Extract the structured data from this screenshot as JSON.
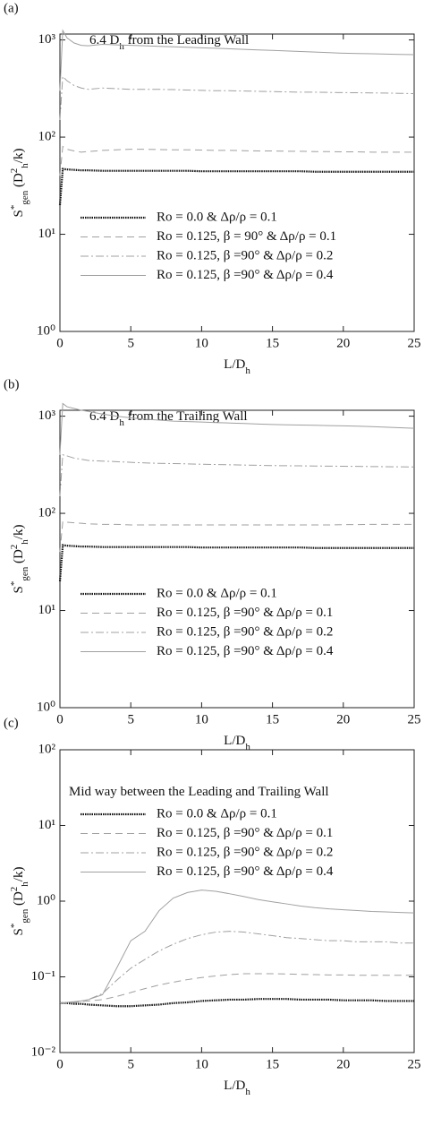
{
  "chart_data": [
    {
      "type": "line",
      "panel": "(a)",
      "log_y": true,
      "annotation": [
        {
          "t": "6.4 D"
        },
        {
          "t": "h",
          "s": "sub"
        },
        {
          "t": " from the Leading Wall"
        }
      ],
      "xlabel": [
        {
          "t": "L/D"
        },
        {
          "t": "h",
          "s": "sub"
        }
      ],
      "ylabel": [
        {
          "t": "S"
        },
        {
          "t": "*",
          "s": "sup"
        },
        {
          "t": "gen",
          "s": "sub"
        },
        {
          "t": " (D"
        },
        {
          "t": "2",
          "s": "sup"
        },
        {
          "t": "h",
          "s": "sub"
        },
        {
          "t": "/k)"
        }
      ],
      "xlim": [
        0,
        25
      ],
      "xticks": [
        0,
        5,
        10,
        15,
        20,
        25
      ],
      "ylim": [
        1,
        1150
      ],
      "yticks": [
        {
          "value": 1,
          "label": "10⁰"
        },
        {
          "value": 10,
          "label": "10¹"
        },
        {
          "value": 100,
          "label": "10²"
        },
        {
          "value": 1000,
          "label": "10³"
        }
      ],
      "legend": "middle",
      "x": [
        0,
        0.2,
        0.5,
        1,
        1.5,
        2,
        3,
        4,
        5,
        6,
        7,
        8,
        9,
        10,
        11,
        12,
        13,
        14,
        15,
        16,
        17,
        18,
        19,
        20,
        21,
        22,
        23,
        24,
        25
      ],
      "series": [
        {
          "name": "Ro = 0.0 & Δρ/ρ = 0.1",
          "color": "#111111",
          "dash": "dotted",
          "values": [
            20,
            47,
            46.5,
            46,
            45.5,
            45.5,
            45,
            45,
            45,
            45,
            45,
            45,
            45,
            44.5,
            44.5,
            44.5,
            44.5,
            44.5,
            44.5,
            44.5,
            44.5,
            44,
            44,
            44,
            44,
            44,
            44,
            44,
            44
          ]
        },
        {
          "name": "Ro = 0.125, β = 90° & Δρ/ρ = 0.1",
          "color": "#a0a0a0",
          "dash": "dashed",
          "values": [
            40,
            80,
            75,
            72,
            70,
            71,
            73,
            74,
            75,
            75,
            74.5,
            74,
            74,
            73.5,
            73,
            73,
            72.5,
            72,
            72,
            71.5,
            71.5,
            71,
            71,
            70.5,
            70.5,
            70,
            70,
            70,
            70
          ]
        },
        {
          "name": "Ro = 0.125, β =90° & Δρ/ρ = 0.2",
          "color": "#a0a0a0",
          "dash": "dashdot",
          "values": [
            150,
            420,
            380,
            340,
            320,
            310,
            320,
            315,
            310,
            310,
            310,
            308,
            305,
            303,
            300,
            300,
            298,
            296,
            294,
            292,
            290,
            290,
            288,
            287,
            286,
            285,
            284,
            282,
            280
          ]
        },
        {
          "name": "Ro = 0.125, β =90° & Δρ/ρ = 0.4",
          "color": "#a0a0a0",
          "dash": "solid",
          "values": [
            300,
            1250,
            1050,
            930,
            880,
            870,
            900,
            890,
            880,
            870,
            860,
            850,
            840,
            830,
            820,
            810,
            800,
            790,
            780,
            770,
            760,
            750,
            740,
            730,
            725,
            720,
            715,
            710,
            705
          ]
        }
      ]
    },
    {
      "type": "line",
      "panel": "(b)",
      "log_y": true,
      "annotation": [
        {
          "t": "6.4 D"
        },
        {
          "t": "h",
          "s": "sub"
        },
        {
          "t": " from the Trailing Wall"
        }
      ],
      "xlabel": [
        {
          "t": "L/D"
        },
        {
          "t": "h",
          "s": "sub"
        }
      ],
      "ylabel": [
        {
          "t": "S"
        },
        {
          "t": "*",
          "s": "sup"
        },
        {
          "t": "gen",
          "s": "sub"
        },
        {
          "t": " (D"
        },
        {
          "t": "2",
          "s": "sup"
        },
        {
          "t": "h",
          "s": "sub"
        },
        {
          "t": "/k)"
        }
      ],
      "xlim": [
        0,
        25
      ],
      "xticks": [
        0,
        5,
        10,
        15,
        20,
        25
      ],
      "ylim": [
        1,
        1150
      ],
      "yticks": [
        {
          "value": 1,
          "label": "10⁰"
        },
        {
          "value": 10,
          "label": "10¹"
        },
        {
          "value": 100,
          "label": "10²"
        },
        {
          "value": 1000,
          "label": "10³"
        }
      ],
      "legend": "middle",
      "x": [
        0,
        0.2,
        0.5,
        1,
        1.5,
        2,
        3,
        4,
        5,
        6,
        7,
        8,
        9,
        10,
        11,
        12,
        13,
        14,
        15,
        16,
        17,
        18,
        19,
        20,
        21,
        22,
        23,
        24,
        25
      ],
      "series": [
        {
          "name": "Ro = 0.0 & Δρ/ρ = 0.1",
          "color": "#111111",
          "dash": "dotted",
          "values": [
            20,
            47,
            46.5,
            46,
            45.5,
            45.5,
            45,
            45,
            45,
            45,
            45,
            45,
            45,
            44.5,
            44.5,
            44.5,
            44.5,
            44.5,
            44.5,
            44.5,
            44.5,
            44,
            44,
            44,
            44,
            44,
            44,
            44,
            44
          ]
        },
        {
          "name": "Ro = 0.125, β =90° & Δρ/ρ = 0.1",
          "color": "#a0a0a0",
          "dash": "dashed",
          "values": [
            40,
            82,
            81,
            80,
            79,
            78,
            77,
            77,
            76,
            76,
            76,
            76,
            76,
            76,
            76,
            76,
            76,
            76,
            76,
            76,
            76,
            76,
            76,
            76.5,
            76.5,
            77,
            77,
            77,
            77
          ]
        },
        {
          "name": "Ro = 0.125, β =90° & Δρ/ρ = 0.2",
          "color": "#a0a0a0",
          "dash": "dashdot",
          "values": [
            150,
            400,
            390,
            370,
            360,
            350,
            345,
            340,
            335,
            330,
            327,
            325,
            323,
            320,
            318,
            316,
            314,
            312,
            310,
            309,
            308,
            307,
            306,
            305,
            304,
            303,
            302,
            301,
            300
          ]
        },
        {
          "name": "Ro = 0.125, β =90° & Δρ/ρ = 0.4",
          "color": "#a0a0a0",
          "dash": "solid",
          "values": [
            400,
            1350,
            1250,
            1200,
            1150,
            1120,
            1050,
            1000,
            960,
            930,
            910,
            890,
            880,
            870,
            860,
            850,
            840,
            830,
            820,
            815,
            810,
            805,
            800,
            795,
            790,
            780,
            770,
            760,
            750
          ]
        }
      ]
    },
    {
      "type": "line",
      "panel": "(c)",
      "log_y": true,
      "annotation": [
        {
          "t": "Mid way between the Leading and Trailing Wall"
        }
      ],
      "xlabel": [
        {
          "t": "L/D"
        },
        {
          "t": "h",
          "s": "sub"
        }
      ],
      "ylabel": [
        {
          "t": "S"
        },
        {
          "t": "*",
          "s": "sup"
        },
        {
          "t": "gen",
          "s": "sub"
        },
        {
          "t": " (D"
        },
        {
          "t": "2",
          "s": "sup"
        },
        {
          "t": "h",
          "s": "sub"
        },
        {
          "t": "/k)"
        }
      ],
      "xlim": [
        0,
        25
      ],
      "xticks": [
        0,
        5,
        10,
        15,
        20,
        25
      ],
      "ylim": [
        0.01,
        100
      ],
      "yticks": [
        {
          "value": 0.01,
          "label": "10⁻²"
        },
        {
          "value": 0.1,
          "label": "10⁻¹"
        },
        {
          "value": 1,
          "label": "10⁰"
        },
        {
          "value": 10,
          "label": "10¹"
        },
        {
          "value": 100,
          "label": "10²"
        }
      ],
      "legend": "upper",
      "x": [
        0,
        0.2,
        0.5,
        1,
        1.5,
        2,
        3,
        4,
        5,
        6,
        7,
        8,
        9,
        10,
        11,
        12,
        13,
        14,
        15,
        16,
        17,
        18,
        19,
        20,
        21,
        22,
        23,
        24,
        25
      ],
      "series": [
        {
          "name": "Ro = 0.0 & Δρ/ρ = 0.1",
          "color": "#111111",
          "dash": "dotted",
          "values": [
            0.045,
            0.045,
            0.045,
            0.044,
            0.044,
            0.043,
            0.042,
            0.041,
            0.041,
            0.042,
            0.043,
            0.045,
            0.046,
            0.048,
            0.049,
            0.05,
            0.05,
            0.051,
            0.051,
            0.051,
            0.05,
            0.05,
            0.05,
            0.049,
            0.049,
            0.049,
            0.048,
            0.048,
            0.048
          ]
        },
        {
          "name": "Ro = 0.125, β =90° & Δρ/ρ = 0.1",
          "color": "#a0a0a0",
          "dash": "dashed",
          "values": [
            0.045,
            0.045,
            0.045,
            0.046,
            0.047,
            0.048,
            0.05,
            0.055,
            0.062,
            0.07,
            0.078,
            0.085,
            0.092,
            0.098,
            0.103,
            0.107,
            0.11,
            0.11,
            0.11,
            0.109,
            0.108,
            0.107,
            0.106,
            0.106,
            0.105,
            0.105,
            0.105,
            0.105,
            0.105
          ]
        },
        {
          "name": "Ro = 0.125, β =90° & Δρ/ρ = 0.2",
          "color": "#a0a0a0",
          "dash": "dashdot",
          "values": [
            0.045,
            0.045,
            0.046,
            0.047,
            0.048,
            0.05,
            0.06,
            0.09,
            0.13,
            0.17,
            0.22,
            0.27,
            0.32,
            0.36,
            0.39,
            0.4,
            0.39,
            0.37,
            0.35,
            0.33,
            0.32,
            0.31,
            0.3,
            0.3,
            0.29,
            0.29,
            0.29,
            0.28,
            0.28
          ]
        },
        {
          "name": "Ro = 0.125, β =90° & Δρ/ρ = 0.4",
          "color": "#a0a0a0",
          "dash": "solid",
          "values": [
            0.045,
            0.045,
            0.046,
            0.047,
            0.048,
            0.05,
            0.058,
            0.13,
            0.3,
            0.4,
            0.75,
            1.1,
            1.3,
            1.4,
            1.35,
            1.25,
            1.15,
            1.05,
            0.98,
            0.92,
            0.86,
            0.82,
            0.79,
            0.77,
            0.75,
            0.73,
            0.72,
            0.71,
            0.7
          ]
        }
      ]
    }
  ]
}
